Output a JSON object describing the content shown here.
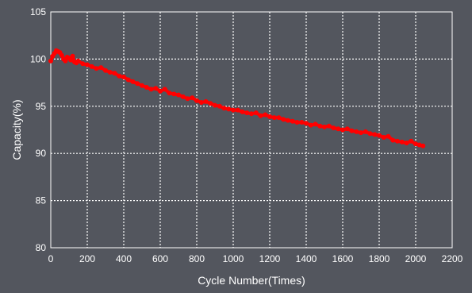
{
  "colors": {
    "background": "#53565e",
    "plot_background": "#53565e",
    "grid": "#ffffff",
    "axis": "#ffffff",
    "text": "#ffffff",
    "series": "#ff0000"
  },
  "chart_data": {
    "type": "line",
    "xlabel": "Cycle Number(Times)",
    "ylabel": "Capacity(%)",
    "xlim": [
      0,
      2200
    ],
    "ylim": [
      80,
      105
    ],
    "xticks": [
      0,
      200,
      400,
      600,
      800,
      1000,
      1200,
      1400,
      1600,
      1800,
      2000,
      2200
    ],
    "yticks": [
      80,
      85,
      90,
      95,
      100,
      105
    ],
    "grid": true,
    "grid_style": "dotted",
    "legend": "none",
    "series": [
      {
        "color": "#ff0000",
        "x": [
          0,
          10,
          20,
          30,
          40,
          50,
          60,
          70,
          80,
          90,
          100,
          110,
          120,
          130,
          140,
          150,
          175,
          200,
          225,
          250,
          275,
          300,
          325,
          350,
          375,
          400,
          425,
          450,
          475,
          500,
          525,
          550,
          575,
          600,
          625,
          650,
          675,
          700,
          725,
          750,
          775,
          800,
          825,
          850,
          875,
          900,
          925,
          950,
          975,
          1000,
          1025,
          1050,
          1075,
          1100,
          1125,
          1150,
          1175,
          1200,
          1225,
          1250,
          1275,
          1300,
          1325,
          1350,
          1375,
          1400,
          1425,
          1450,
          1475,
          1500,
          1525,
          1550,
          1575,
          1600,
          1625,
          1650,
          1675,
          1700,
          1725,
          1750,
          1775,
          1800,
          1825,
          1850,
          1875,
          1900,
          1925,
          1950,
          1975,
          2000,
          2020,
          2040
        ],
        "y": [
          99.8,
          100.3,
          100.6,
          100.9,
          100.8,
          100.7,
          100.4,
          100.0,
          99.8,
          100.2,
          100.1,
          99.9,
          100.3,
          99.7,
          99.6,
          99.8,
          99.5,
          99.4,
          99.2,
          99.0,
          99.1,
          98.8,
          98.6,
          98.5,
          98.2,
          98.1,
          97.8,
          97.6,
          97.4,
          97.2,
          97.0,
          96.8,
          96.9,
          96.6,
          96.8,
          96.4,
          96.3,
          96.2,
          96.0,
          95.8,
          95.9,
          95.6,
          95.4,
          95.5,
          95.3,
          95.1,
          95.0,
          94.8,
          94.7,
          94.6,
          94.6,
          94.4,
          94.3,
          94.2,
          94.3,
          94.0,
          94.1,
          93.9,
          93.8,
          93.8,
          93.6,
          93.5,
          93.4,
          93.3,
          93.3,
          93.2,
          93.0,
          93.1,
          92.9,
          92.8,
          92.9,
          92.7,
          92.6,
          92.5,
          92.6,
          92.4,
          92.3,
          92.2,
          92.3,
          92.1,
          92.0,
          91.9,
          91.7,
          91.8,
          91.4,
          91.3,
          91.2,
          91.1,
          91.3,
          91.0,
          90.9,
          90.8
        ]
      }
    ]
  }
}
